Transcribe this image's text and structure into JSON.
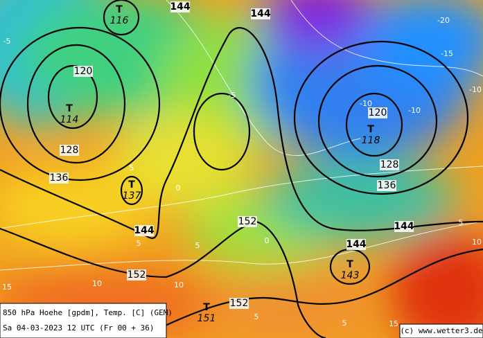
{
  "caption": {
    "line1": "850 hPa Hoehe [gpdm], Temp. [C] (GEM)",
    "line2": "Sa 04-03-2023 12 UTC (Fr 00 + 36)"
  },
  "credit": "(c) www.wetter3.de",
  "centers": [
    {
      "letter": "T",
      "value": 116
    },
    {
      "letter": "T",
      "value": 114
    },
    {
      "letter": "T",
      "value": 137
    },
    {
      "letter": "T",
      "value": 118
    },
    {
      "letter": "T",
      "value": 143
    },
    {
      "letter": "T",
      "value": 151
    }
  ],
  "height_labels": [
    120,
    128,
    136,
    144,
    144,
    144,
    152,
    152,
    152,
    120,
    128,
    136,
    144,
    144
  ],
  "temp_labels": [
    -5,
    -20,
    -15,
    -10,
    -10,
    -5,
    -10,
    0,
    5,
    5,
    0,
    5,
    10,
    10,
    15,
    5,
    5,
    15,
    10,
    5
  ]
}
